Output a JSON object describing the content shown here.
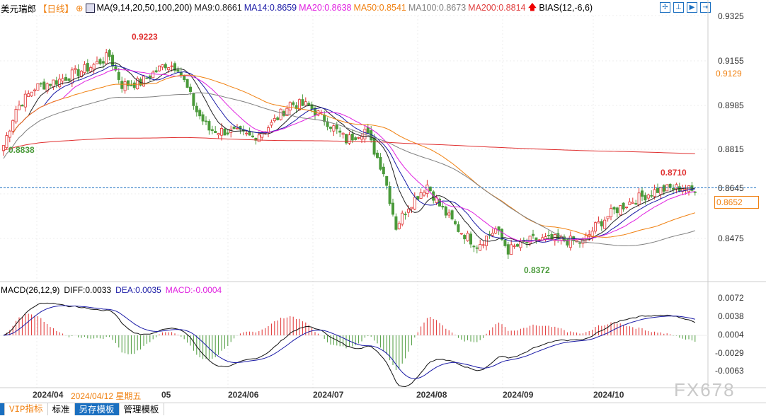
{
  "header": {
    "symbol": "美元瑞郎",
    "period": "【日线】",
    "ma_title": "MA(9,14,20,50,100,200)",
    "ma": [
      {
        "label": "MA9:0.8661",
        "color": "#222222"
      },
      {
        "label": "MA14:0.8659",
        "color": "#1a1aa6"
      },
      {
        "label": "MA20:0.8638",
        "color": "#e020e0"
      },
      {
        "label": "MA50:0.8541",
        "color": "#f08010"
      },
      {
        "label": "MA100:0.8673",
        "color": "#808080"
      },
      {
        "label": "MA200:0.8814",
        "color": "#e03030"
      }
    ],
    "bias": "BIAS(12,-6,6)"
  },
  "axis": {
    "price": [
      "0.9325",
      "0.9155",
      "0.8985",
      "0.8815",
      "0.8645",
      "0.8475"
    ],
    "ma50_tag": "0.9129",
    "current": "0.8652",
    "macd": [
      "0.0072",
      "0.0038",
      "0.0004",
      "-0.0029",
      "-0.0063"
    ]
  },
  "annotations": {
    "high": "0.9223",
    "low": "0.8372",
    "start": "0.8838",
    "recent_high": "0.8710"
  },
  "macd": {
    "title": "MACD(26,12,9)",
    "diff": "DIFF:0.0033",
    "dea": "DEA:0.0035",
    "macd": "MACD:-0.0004"
  },
  "dates": {
    "d1": "2024/04",
    "cursor": "2024/04/12 星期五",
    "d2": "05",
    "d3": "2024/06",
    "d4": "2024/07",
    "d5": "2024/08",
    "d6": "2024/09",
    "d7": "2024/10"
  },
  "tabs": [
    "VIP指标",
    "标准",
    "另存模板",
    "管理模板"
  ],
  "watermark": "FX678",
  "colors": {
    "up": "#e03030",
    "down": "#4a9a3a"
  },
  "chart_data": {
    "type": "candlestick",
    "title": "美元瑞郎 日线",
    "ylim": [
      0.8372,
      0.9325
    ],
    "close_keypoints": [
      [
        0,
        0.883
      ],
      [
        4,
        0.897
      ],
      [
        10,
        0.905
      ],
      [
        18,
        0.908
      ],
      [
        28,
        0.913
      ],
      [
        34,
        0.917
      ],
      [
        38,
        0.906
      ],
      [
        44,
        0.907
      ],
      [
        52,
        0.914
      ],
      [
        56,
        0.913
      ],
      [
        62,
        0.896
      ],
      [
        66,
        0.889
      ],
      [
        74,
        0.888
      ],
      [
        80,
        0.886
      ],
      [
        86,
        0.891
      ],
      [
        92,
        0.899
      ],
      [
        98,
        0.898
      ],
      [
        104,
        0.892
      ],
      [
        110,
        0.885
      ],
      [
        116,
        0.889
      ],
      [
        122,
        0.873
      ],
      [
        126,
        0.852
      ],
      [
        130,
        0.86
      ],
      [
        136,
        0.868
      ],
      [
        140,
        0.86
      ],
      [
        146,
        0.851
      ],
      [
        152,
        0.845
      ],
      [
        158,
        0.851
      ],
      [
        162,
        0.843
      ],
      [
        170,
        0.847
      ],
      [
        178,
        0.847
      ],
      [
        186,
        0.846
      ],
      [
        190,
        0.852
      ],
      [
        196,
        0.858
      ],
      [
        202,
        0.862
      ],
      [
        210,
        0.866
      ],
      [
        218,
        0.867
      ],
      [
        222,
        0.865
      ]
    ]
  }
}
